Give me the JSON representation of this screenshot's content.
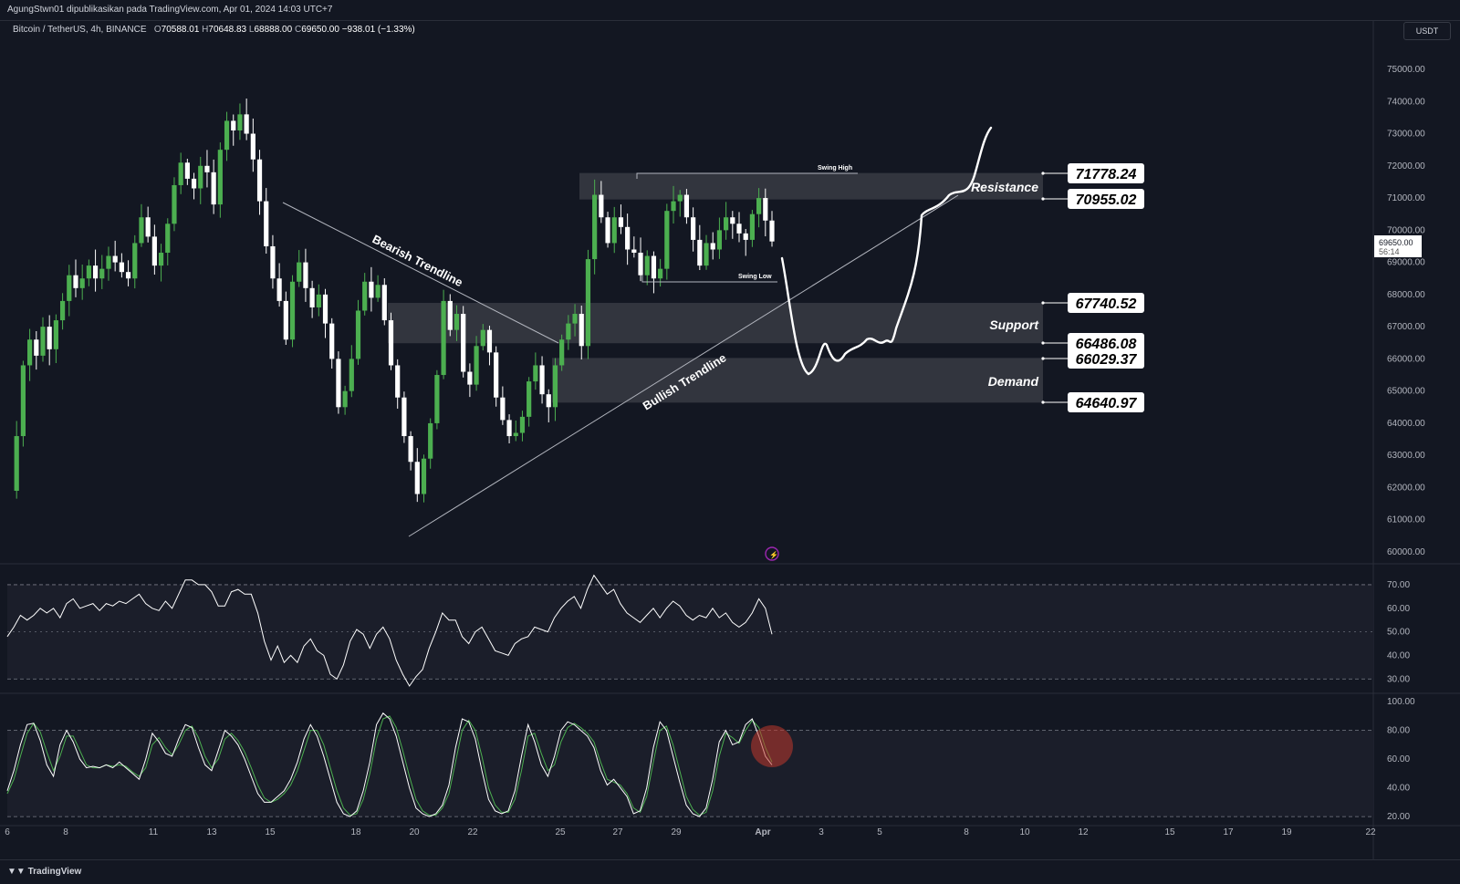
{
  "header": {
    "publish_line": "AgungStwn01 dipublikasikan pada TradingView.com, Apr 01, 2024 14:03 UTC+7"
  },
  "symbol": {
    "name": "Bitcoin / TetherUS, 4h, BINANCE",
    "o_label": "O",
    "open": "70588.01",
    "h_label": "H",
    "high": "70648.83",
    "l_label": "L",
    "low": "68888.00",
    "c_label": "C",
    "close": "69650.00",
    "change": "−938.01 (−1.33%)"
  },
  "currency": "USDT",
  "footer": {
    "brand": "TradingView"
  },
  "colors": {
    "background": "#131722",
    "up": "#4caf50",
    "down": "#ffffff",
    "zone": "#3b3e47",
    "indicator_rsi": "#ffffff",
    "stoch_k": "#ffffff",
    "stoch_d": "#4caf50",
    "signal_circle": "#c0392b"
  },
  "chart_data": {
    "type": "candlestick",
    "timeframe": "4h",
    "ylim": [
      60000,
      75500
    ],
    "yticks": [
      "75000.00",
      "74000.00",
      "73000.00",
      "72000.00",
      "71000.00",
      "70000.00",
      "69000.00",
      "68000.00",
      "67000.00",
      "66000.00",
      "65000.00",
      "64000.00",
      "63000.00",
      "62000.00",
      "61000.00",
      "60000.00"
    ],
    "xticks": [
      "6",
      "8",
      "11",
      "13",
      "15",
      "18",
      "20",
      "22",
      "25",
      "27",
      "29",
      "Apr",
      "3",
      "5",
      "8",
      "10",
      "12",
      "15",
      "17",
      "19",
      "22"
    ],
    "current_price": {
      "value": "69650.00",
      "countdown": "56:14"
    },
    "close_path": [
      61900,
      63600,
      65800,
      66600,
      66100,
      67000,
      66300,
      67200,
      67800,
      68600,
      68200,
      68500,
      68900,
      68500,
      68800,
      69200,
      69000,
      68700,
      68500,
      69600,
      70400,
      69800,
      68900,
      69300,
      70200,
      71400,
      72100,
      71600,
      71300,
      72000,
      71800,
      70800,
      72500,
      73400,
      73100,
      73600,
      73000,
      72200,
      70900,
      69500,
      68500,
      67800,
      66600,
      68400,
      69000,
      68200,
      67600,
      68000,
      67100,
      66000,
      64500,
      65000,
      66000,
      67500,
      68400,
      67900,
      68300,
      67200,
      65800,
      64800,
      63600,
      62800,
      61800,
      62900,
      64000,
      65500,
      67800,
      66900,
      67400,
      65600,
      65200,
      66400,
      66900,
      66200,
      64800,
      64100,
      63600,
      63700,
      64200,
      65300,
      65800,
      64900,
      64500,
      65800,
      66600,
      67100,
      67400,
      66400,
      69100,
      71100,
      70400,
      69600,
      70400,
      70100,
      69400,
      69300,
      68600,
      69200,
      68500,
      68800,
      70600,
      70900,
      71100,
      70400,
      69700,
      68900,
      69600,
      69400,
      70000,
      70400,
      70200,
      69900,
      69700,
      70500,
      71000,
      70300,
      69650
    ],
    "zones": [
      {
        "name": "Resistance",
        "top": 71778.24,
        "bottom": 70955.02
      },
      {
        "name": "Support",
        "top": 67740.52,
        "bottom": 66486.08
      },
      {
        "name": "Demand",
        "top": 66029.37,
        "bottom": 64640.97
      }
    ],
    "price_labels": [
      "71778.24",
      "70955.02",
      "67740.52",
      "66486.08",
      "66029.37",
      "64640.97"
    ],
    "annotations": {
      "bearish": "Bearish Trendline",
      "bullish": "Bullish Trendline",
      "swing_high": "Swing High",
      "swing_low": "Swing Low",
      "resistance": "Resistance",
      "support": "Support",
      "demand": "Demand"
    },
    "rsi": {
      "ylim": [
        27,
        75
      ],
      "yticks": [
        "70.00",
        "60.00",
        "50.00",
        "40.00",
        "30.00"
      ],
      "bands": [
        70,
        30
      ],
      "values": [
        48,
        52,
        57,
        55,
        57,
        60,
        58,
        60,
        56,
        62,
        64,
        60,
        61,
        62,
        59,
        62,
        61,
        63,
        62,
        64,
        66,
        62,
        60,
        59,
        63,
        60,
        66,
        72,
        72,
        70,
        70,
        67,
        61,
        61,
        67,
        68,
        66,
        66,
        58,
        46,
        38,
        44,
        37,
        40,
        37,
        44,
        47,
        42,
        40,
        32,
        30,
        36,
        46,
        51,
        49,
        43,
        49,
        52,
        47,
        38,
        32,
        27,
        31,
        34,
        43,
        50,
        58,
        55,
        55,
        48,
        45,
        50,
        52,
        47,
        42,
        41,
        40,
        45,
        47,
        48,
        52,
        51,
        50,
        56,
        60,
        63,
        65,
        60,
        68,
        74,
        70,
        66,
        68,
        62,
        58,
        56,
        54,
        57,
        60,
        56,
        60,
        63,
        61,
        57,
        55,
        57,
        56,
        60,
        56,
        58,
        54,
        52,
        54,
        58,
        64,
        60,
        49
      ]
    },
    "stoch": {
      "ylim": [
        15,
        102
      ],
      "yticks": [
        "100.00",
        "80.00",
        "60.00",
        "40.00",
        "20.00"
      ],
      "bands": [
        80,
        20
      ],
      "k_values": [
        38,
        52,
        70,
        84,
        85,
        73,
        56,
        48,
        70,
        80,
        72,
        60,
        54,
        55,
        54,
        56,
        54,
        58,
        54,
        50,
        46,
        60,
        78,
        72,
        64,
        62,
        74,
        84,
        82,
        68,
        56,
        52,
        66,
        80,
        76,
        70,
        60,
        48,
        36,
        30,
        30,
        34,
        38,
        46,
        58,
        74,
        84,
        76,
        62,
        46,
        30,
        22,
        20,
        24,
        38,
        58,
        84,
        92,
        88,
        76,
        58,
        40,
        26,
        22,
        20,
        22,
        28,
        42,
        68,
        88,
        86,
        74,
        52,
        32,
        24,
        22,
        24,
        38,
        62,
        84,
        72,
        56,
        48,
        62,
        80,
        86,
        84,
        80,
        76,
        68,
        52,
        42,
        46,
        40,
        34,
        22,
        24,
        40,
        68,
        86,
        80,
        62,
        44,
        28,
        22,
        20,
        26,
        46,
        72,
        80,
        70,
        72,
        84,
        88,
        76,
        62,
        56
      ],
      "d_values": [
        36,
        46,
        62,
        78,
        85,
        79,
        65,
        52,
        62,
        76,
        76,
        66,
        56,
        54,
        54,
        56,
        55,
        56,
        55,
        51,
        48,
        54,
        70,
        75,
        68,
        63,
        70,
        80,
        83,
        75,
        62,
        54,
        60,
        74,
        78,
        73,
        65,
        54,
        42,
        33,
        30,
        32,
        36,
        42,
        52,
        66,
        80,
        80,
        70,
        54,
        38,
        26,
        21,
        22,
        32,
        50,
        74,
        88,
        90,
        82,
        66,
        48,
        32,
        24,
        21,
        21,
        26,
        36,
        58,
        80,
        87,
        80,
        62,
        40,
        28,
        23,
        23,
        32,
        52,
        76,
        78,
        64,
        52,
        56,
        72,
        82,
        85,
        82,
        78,
        72,
        58,
        46,
        44,
        42,
        36,
        26,
        23,
        34,
        58,
        80,
        83,
        70,
        52,
        34,
        25,
        21,
        23,
        38,
        62,
        78,
        75,
        71,
        80,
        87,
        82,
        68,
        58
      ]
    }
  }
}
